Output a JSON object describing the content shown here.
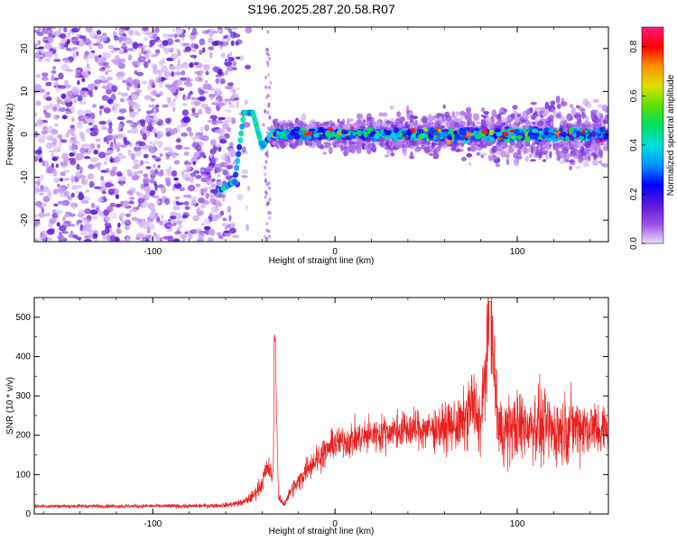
{
  "title": "S196.2025.287.20.58.R07",
  "chart_data": [
    {
      "type": "heatmap",
      "name": "spectrogram",
      "xlabel": "Height of straight line (km)",
      "ylabel": "Frequency (Hz)",
      "xlim": [
        -165,
        150
      ],
      "ylim": [
        -25,
        25
      ],
      "xticks": [
        -100,
        0,
        100
      ],
      "yticks": [
        -20,
        -10,
        0,
        10,
        20
      ],
      "colorbar": {
        "label": "Normalized spectral amplitude",
        "range": [
          0.0,
          0.88
        ],
        "ticks": [
          0.0,
          0.2,
          0.4,
          0.6,
          0.8
        ],
        "colormap": [
          "#eadcff",
          "#9b4ee3",
          "#5a18d8",
          "#0000ff",
          "#0090ff",
          "#00e0e0",
          "#00e060",
          "#60e000",
          "#e0e000",
          "#ff9000",
          "#ff0000",
          "#ff1a80"
        ]
      },
      "features": [
        {
          "label": "noise field",
          "x_range": [
            -165,
            -55
          ],
          "freq_range": [
            -25,
            25
          ],
          "amplitude": 0.08
        },
        {
          "label": "signal onset",
          "x": [
            -63,
            -55,
            -50,
            -45,
            -40,
            -35
          ],
          "freq": [
            -13,
            -11,
            5,
            5,
            -3,
            0
          ],
          "amplitude": 0.4
        },
        {
          "label": "central line",
          "x_range": [
            -35,
            150
          ],
          "freq_center": 0,
          "freq_spread": [
            -4,
            4
          ],
          "peak_amplitude": 0.85
        }
      ]
    },
    {
      "type": "line",
      "name": "snr",
      "xlabel": "Height of straight line (km)",
      "ylabel": "SNR (10 * v/v)",
      "xlim": [
        -165,
        150
      ],
      "ylim": [
        0,
        550
      ],
      "xticks": [
        -100,
        0,
        100
      ],
      "yticks": [
        0,
        100,
        200,
        300,
        400,
        500
      ],
      "series": [
        {
          "name": "SNR",
          "color": "#e8201e",
          "x": [
            -165,
            -140,
            -120,
            -100,
            -80,
            -60,
            -50,
            -45,
            -40,
            -37,
            -34,
            -33,
            -31,
            -28,
            -24,
            -20,
            -15,
            -10,
            -5,
            0,
            10,
            20,
            30,
            40,
            50,
            60,
            70,
            75,
            80,
            85,
            90,
            100,
            110,
            120,
            130,
            140,
            150
          ],
          "y": [
            20,
            20,
            20,
            20,
            20,
            22,
            30,
            45,
            80,
            120,
            90,
            470,
            40,
            25,
            60,
            80,
            120,
            140,
            160,
            180,
            190,
            200,
            210,
            215,
            215,
            220,
            225,
            280,
            230,
            500,
            210,
            220,
            230,
            210,
            225,
            220,
            210
          ],
          "spread": [
            8,
            8,
            8,
            8,
            8,
            10,
            15,
            25,
            40,
            50,
            40,
            0,
            15,
            15,
            30,
            40,
            50,
            60,
            60,
            60,
            70,
            70,
            70,
            75,
            80,
            90,
            110,
            150,
            130,
            200,
            140,
            140,
            150,
            140,
            130,
            120,
            110
          ]
        }
      ]
    }
  ]
}
